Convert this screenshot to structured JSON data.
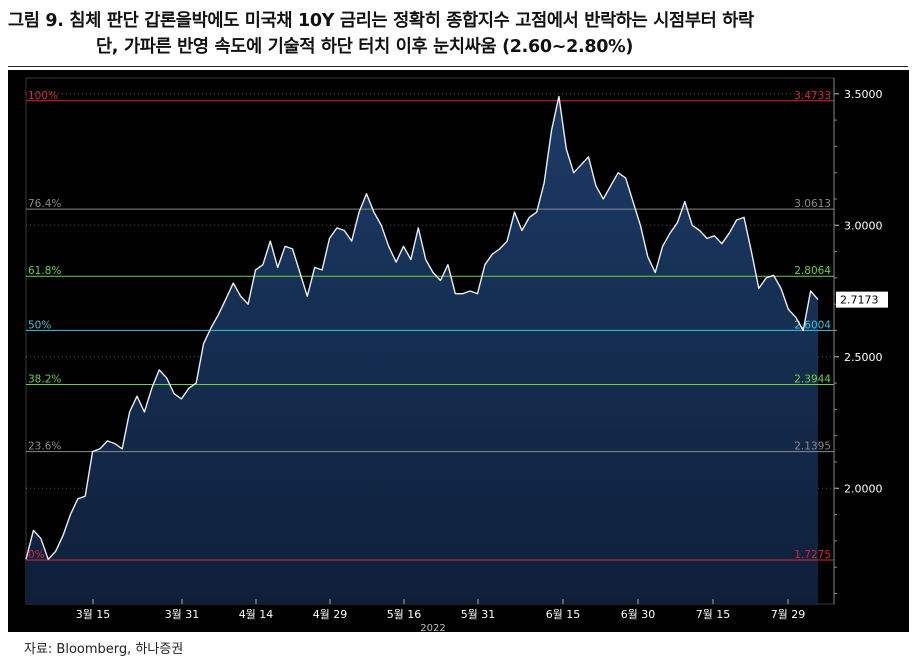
{
  "title": {
    "line1": "그림 9. 침체 판단 갑론을박에도 미국채 10Y 금리는 정확히 종합지수 고점에서 반락하는 시점부터 하락",
    "line2": "단, 가파른 반영 속도에 기술적 하단 터치 이후 눈치싸움 (2.60~2.80%)"
  },
  "source": "자료: Bloomberg, 하나증권",
  "chart_data": {
    "type": "area",
    "x_ticks": [
      "3월 15",
      "3월 31",
      "4월 14",
      "4월 29",
      "5월 16",
      "5월 31",
      "6월 15",
      "6월 30",
      "7월 15",
      "7월 29"
    ],
    "x_year": "2022",
    "y_ticks": [
      "3.5000",
      "3.0000",
      "2.5000",
      "2.0000"
    ],
    "y_tick_values": [
      3.5,
      3.0,
      2.5,
      2.0
    ],
    "ylim": [
      1.56,
      3.56
    ],
    "last_value": "2.7173",
    "fib_levels": [
      {
        "pct": "100%",
        "value": 3.4733,
        "value_label": "3.4733",
        "color": "#d9243c"
      },
      {
        "pct": "76.4%",
        "value": 3.0613,
        "value_label": "3.0613",
        "color": "#8a8a8a"
      },
      {
        "pct": "61.8%",
        "value": 2.8064,
        "value_label": "2.8064",
        "color": "#6fcf3c"
      },
      {
        "pct": "50%",
        "value": 2.6004,
        "value_label": "2.6004",
        "color": "#33c6e0"
      },
      {
        "pct": "38.2%",
        "value": 2.3944,
        "value_label": "2.3944",
        "color": "#6fcf3c"
      },
      {
        "pct": "23.6%",
        "value": 2.1395,
        "value_label": "2.1395",
        "color": "#8a8a8a"
      },
      {
        "pct": "0%",
        "value": 1.7275,
        "value_label": "1.7275",
        "color": "#d9243c"
      }
    ],
    "series": [
      {
        "values": [
          1.73,
          1.84,
          1.81,
          1.73,
          1.76,
          1.82,
          1.9,
          1.96,
          1.97,
          2.14,
          2.15,
          2.18,
          2.17,
          2.15,
          2.29,
          2.35,
          2.29,
          2.38,
          2.45,
          2.42,
          2.36,
          2.34,
          2.38,
          2.4,
          2.55,
          2.61,
          2.66,
          2.72,
          2.78,
          2.73,
          2.7,
          2.83,
          2.85,
          2.94,
          2.84,
          2.92,
          2.91,
          2.82,
          2.73,
          2.84,
          2.83,
          2.95,
          2.99,
          2.98,
          2.94,
          3.05,
          3.12,
          3.05,
          3.0,
          2.92,
          2.86,
          2.92,
          2.87,
          2.99,
          2.87,
          2.82,
          2.79,
          2.85,
          2.74,
          2.74,
          2.75,
          2.74,
          2.85,
          2.89,
          2.91,
          2.94,
          3.05,
          2.98,
          3.03,
          3.05,
          3.16,
          3.36,
          3.49,
          3.29,
          3.2,
          3.23,
          3.26,
          3.15,
          3.1,
          3.15,
          3.2,
          3.18,
          3.09,
          3.0,
          2.88,
          2.82,
          2.92,
          2.97,
          3.01,
          3.09,
          3.0,
          2.98,
          2.95,
          2.96,
          2.93,
          2.97,
          3.02,
          3.03,
          2.9,
          2.76,
          2.8,
          2.81,
          2.76,
          2.68,
          2.65,
          2.6,
          2.75,
          2.7173
        ]
      }
    ]
  }
}
